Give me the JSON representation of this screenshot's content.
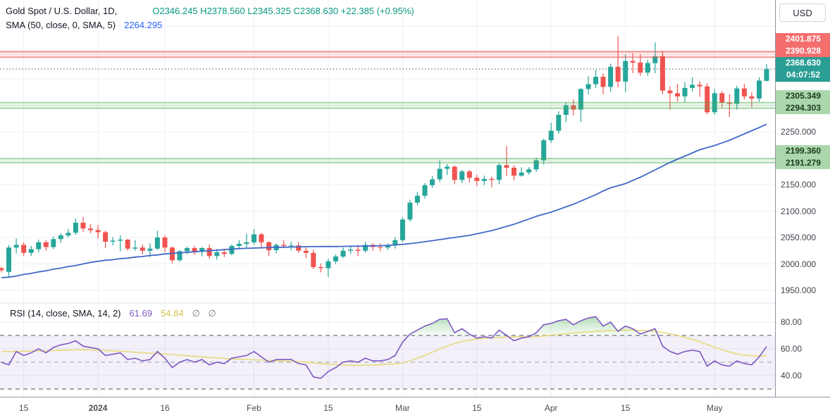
{
  "header": {
    "symbol_title": "Gold Spot / U.S. Dollar, 1D,",
    "ohlc": "O2346.245  H2378.560  L2345.325  C2368.630  +22.385 (+0.95%)",
    "sma_label": "SMA (50, close, 0, SMA, 5)",
    "sma_value": "2264.295"
  },
  "rsi_legend": {
    "label": "RSI (14, close, SMA, 14, 2)",
    "value": "61.69",
    "signal": "54.84",
    "extra": "∅ ∅"
  },
  "price_scale": {
    "currency_button": "USD",
    "ticks": [
      2250,
      2150,
      2100,
      2050,
      2000,
      1950
    ],
    "labels": [
      {
        "price": 2401.875,
        "text": "2401.875",
        "kind": "resistance"
      },
      {
        "price": 2390.928,
        "text": "2390.928",
        "kind": "resistance"
      },
      {
        "price": 2368.63,
        "text": "2368.630",
        "sub": "04:07:52",
        "kind": "last"
      },
      {
        "price": 2305.349,
        "text": "2305.349",
        "kind": "support"
      },
      {
        "price": 2294.303,
        "text": "2294.303",
        "kind": "support"
      },
      {
        "price": 2199.36,
        "text": "2199.360",
        "kind": "support"
      },
      {
        "price": 2191.279,
        "text": "2191.279",
        "kind": "support"
      }
    ],
    "rsi_ticks": [
      80,
      60,
      40
    ]
  },
  "time_axis": {
    "labels": [
      {
        "text": "15",
        "index": 3,
        "strong": false
      },
      {
        "text": "2024",
        "index": 13,
        "strong": true
      },
      {
        "text": "16",
        "index": 22,
        "strong": false
      },
      {
        "text": "Feb",
        "index": 34,
        "strong": false
      },
      {
        "text": "15",
        "index": 44,
        "strong": false
      },
      {
        "text": "Mar",
        "index": 54,
        "strong": false
      },
      {
        "text": "15",
        "index": 64,
        "strong": false
      },
      {
        "text": "Apr",
        "index": 74,
        "strong": false
      },
      {
        "text": "15",
        "index": 84,
        "strong": false
      },
      {
        "text": "May",
        "index": 96,
        "strong": false
      }
    ]
  },
  "colors": {
    "up": "#26a69a",
    "down": "#ef5350",
    "sma": "#4169c9",
    "rsi": "#7e57c2",
    "rsi_signal": "#e5d76e",
    "rsi_band": "rgba(126,87,194,0.09)",
    "overbought_fill": "#4caf50",
    "resistance": "#ef5350",
    "support": "#4caf50",
    "last_price_line": "#5f7680",
    "grid": "#edf0f5",
    "divider": "#dfe2ea"
  },
  "chart_data": {
    "type": "candlestick",
    "title": "Gold Spot / U.S. Dollar, 1D",
    "currency": "USD",
    "last_bar": {
      "open": 2346.245,
      "high": 2378.56,
      "low": 2345.325,
      "close": 2368.63,
      "change": 22.385,
      "change_pct": 0.95
    },
    "sma50_last": 2264.295,
    "rsi_last": 61.69,
    "rsi_signal_last": 54.84,
    "price_ticks": [
      2250,
      2150,
      2100,
      2050,
      2000,
      1950
    ],
    "levels": {
      "resistance_zone": [
        2390.928,
        2401.875
      ],
      "support_zones": [
        [
          2294.303,
          2305.349
        ],
        [
          2191.279,
          2199.36
        ]
      ],
      "last_price": 2368.63
    },
    "candles": [
      [
        1992,
        1995,
        1984,
        1988
      ],
      [
        1985,
        2036,
        1974,
        2031
      ],
      [
        2031,
        2048,
        2020,
        2036
      ],
      [
        2036,
        2041,
        2015,
        2021
      ],
      [
        2021,
        2034,
        2015,
        2028
      ],
      [
        2028,
        2046,
        2022,
        2041
      ],
      [
        2041,
        2045,
        2025,
        2032
      ],
      [
        2032,
        2052,
        2028,
        2047
      ],
      [
        2047,
        2058,
        2040,
        2054
      ],
      [
        2054,
        2066,
        2050,
        2059
      ],
      [
        2059,
        2086,
        2055,
        2078
      ],
      [
        2078,
        2089,
        2061,
        2067
      ],
      [
        2067,
        2076,
        2058,
        2064
      ],
      [
        2064,
        2074,
        2048,
        2060
      ],
      [
        2060,
        2063,
        2030,
        2042
      ],
      [
        2042,
        2051,
        2035,
        2044
      ],
      [
        2044,
        2054,
        2024,
        2046
      ],
      [
        2046,
        2047,
        2025,
        2029
      ],
      [
        2029,
        2045,
        2025,
        2031
      ],
      [
        2031,
        2037,
        2018,
        2025
      ],
      [
        2025,
        2039,
        2013,
        2029
      ],
      [
        2029,
        2063,
        2026,
        2050
      ],
      [
        2050,
        2054,
        2022,
        2031
      ],
      [
        2031,
        2033,
        2001,
        2007
      ],
      [
        2007,
        2026,
        2004,
        2024
      ],
      [
        2024,
        2033,
        2018,
        2030
      ],
      [
        2030,
        2034,
        2017,
        2023
      ],
      [
        2023,
        2032,
        2014,
        2030
      ],
      [
        2030,
        2037,
        2010,
        2015
      ],
      [
        2015,
        2028,
        2008,
        2022
      ],
      [
        2022,
        2029,
        2013,
        2019
      ],
      [
        2019,
        2037,
        2016,
        2034
      ],
      [
        2034,
        2045,
        2028,
        2038
      ],
      [
        2038,
        2057,
        2030,
        2041
      ],
      [
        2041,
        2066,
        2036,
        2056
      ],
      [
        2056,
        2059,
        2029,
        2041
      ],
      [
        2041,
        2043,
        2015,
        2026
      ],
      [
        2026,
        2039,
        2020,
        2036
      ],
      [
        2036,
        2045,
        2030,
        2034
      ],
      [
        2034,
        2042,
        2026,
        2035
      ],
      [
        2035,
        2041,
        2021,
        2025
      ],
      [
        2025,
        2031,
        2011,
        2021
      ],
      [
        2021,
        2027,
        1990,
        1994
      ],
      [
        1994,
        2001,
        1984,
        1992
      ],
      [
        1992,
        2010,
        1975,
        2005
      ],
      [
        2005,
        2018,
        2000,
        2014
      ],
      [
        2014,
        2031,
        2011,
        2025
      ],
      [
        2025,
        2034,
        2019,
        2027
      ],
      [
        2027,
        2036,
        2015,
        2025
      ],
      [
        2025,
        2042,
        2021,
        2036
      ],
      [
        2036,
        2039,
        2025,
        2032
      ],
      [
        2032,
        2039,
        2024,
        2031
      ],
      [
        2031,
        2039,
        2026,
        2035
      ],
      [
        2035,
        2051,
        2029,
        2045
      ],
      [
        2045,
        2089,
        2041,
        2084
      ],
      [
        2084,
        2121,
        2080,
        2116
      ],
      [
        2116,
        2136,
        2111,
        2129
      ],
      [
        2129,
        2153,
        2124,
        2149
      ],
      [
        2149,
        2166,
        2144,
        2160
      ],
      [
        2160,
        2196,
        2155,
        2180
      ],
      [
        2180,
        2189,
        2168,
        2184
      ],
      [
        2184,
        2186,
        2151,
        2159
      ],
      [
        2159,
        2178,
        2153,
        2175
      ],
      [
        2175,
        2178,
        2154,
        2163
      ],
      [
        2163,
        2169,
        2147,
        2157
      ],
      [
        2157,
        2167,
        2149,
        2161
      ],
      [
        2161,
        2165,
        2145,
        2159
      ],
      [
        2159,
        2191,
        2151,
        2187
      ],
      [
        2187,
        2223,
        2166,
        2182
      ],
      [
        2182,
        2187,
        2158,
        2167
      ],
      [
        2167,
        2183,
        2165,
        2173
      ],
      [
        2173,
        2183,
        2169,
        2179
      ],
      [
        2179,
        2201,
        2174,
        2196
      ],
      [
        2196,
        2237,
        2188,
        2234
      ],
      [
        2234,
        2267,
        2229,
        2252
      ],
      [
        2252,
        2289,
        2246,
        2282
      ],
      [
        2282,
        2306,
        2268,
        2300
      ],
      [
        2300,
        2311,
        2281,
        2292
      ],
      [
        2292,
        2333,
        2269,
        2331
      ],
      [
        2331,
        2355,
        2321,
        2340
      ],
      [
        2340,
        2367,
        2333,
        2354
      ],
      [
        2354,
        2361,
        2321,
        2335
      ],
      [
        2335,
        2379,
        2326,
        2373
      ],
      [
        2373,
        2431,
        2334,
        2345
      ],
      [
        2345,
        2396,
        2325,
        2384
      ],
      [
        2384,
        2399,
        2361,
        2381
      ],
      [
        2381,
        2397,
        2356,
        2362
      ],
      [
        2362,
        2386,
        2356,
        2380
      ],
      [
        2380,
        2419,
        2361,
        2393
      ],
      [
        2393,
        2403,
        2321,
        2328
      ],
      [
        2328,
        2336,
        2292,
        2323
      ],
      [
        2323,
        2341,
        2307,
        2317
      ],
      [
        2317,
        2344,
        2306,
        2333
      ],
      [
        2333,
        2353,
        2326,
        2339
      ],
      [
        2339,
        2346,
        2316,
        2336
      ],
      [
        2336,
        2342,
        2283,
        2287
      ],
      [
        2287,
        2331,
        2282,
        2323
      ],
      [
        2323,
        2327,
        2296,
        2305
      ],
      [
        2305,
        2321,
        2278,
        2303
      ],
      [
        2303,
        2337,
        2292,
        2332
      ],
      [
        2332,
        2341,
        2311,
        2317
      ],
      [
        2317,
        2325,
        2296,
        2313
      ],
      [
        2313,
        2353,
        2307,
        2347
      ],
      [
        2346.245,
        2378.56,
        2345.325,
        2368.63
      ]
    ],
    "sma50": [
      1974,
      1975,
      1977,
      1980,
      1982,
      1985,
      1987,
      1990,
      1992,
      1995,
      1997,
      2000,
      2003,
      2005,
      2007,
      2008,
      2010,
      2011,
      2013,
      2014,
      2016,
      2017,
      2019,
      2020,
      2021,
      2022,
      2023,
      2024,
      2025,
      2026,
      2027,
      2028,
      2029,
      2029.5,
      2030,
      2030.5,
      2031,
      2031.3,
      2031.6,
      2032,
      2032.3,
      2032.6,
      2032.8,
      2033,
      2033,
      2033,
      2033.2,
      2033.4,
      2033.6,
      2033.8,
      2034,
      2034.5,
      2035,
      2036,
      2037,
      2038.5,
      2040,
      2042,
      2044,
      2046,
      2048,
      2050,
      2052,
      2054,
      2057,
      2060,
      2063,
      2067,
      2071,
      2075,
      2080,
      2085,
      2090,
      2094,
      2098,
      2103,
      2108,
      2113,
      2119,
      2125,
      2131,
      2138,
      2144,
      2148,
      2152,
      2158,
      2164,
      2171,
      2178,
      2185,
      2192,
      2198,
      2204,
      2210,
      2216,
      2220,
      2224,
      2229,
      2234,
      2240,
      2246,
      2252,
      2258,
      2264.3
    ],
    "indicator_pane": {
      "name": "RSI (14, close, SMA, 14, 2)",
      "levels": [
        70,
        50,
        30
      ],
      "ticks": [
        80,
        60,
        40
      ],
      "rsi": [
        50,
        48,
        58,
        55,
        57,
        60,
        57,
        61,
        63,
        64,
        66,
        62,
        61,
        60,
        55,
        56,
        57,
        52,
        53,
        51,
        52,
        58,
        53,
        46,
        50,
        52,
        50,
        52,
        48,
        50,
        49,
        53,
        54,
        55,
        58,
        54,
        50,
        52,
        52,
        52,
        49,
        48,
        39,
        38,
        43,
        46,
        50,
        51,
        50,
        53,
        51,
        51,
        52,
        55,
        65,
        71,
        74,
        77,
        79,
        82,
        82.5,
        72,
        75,
        71,
        68,
        69,
        68,
        74,
        70,
        66,
        68,
        69,
        72,
        78,
        79,
        81,
        82,
        78,
        81,
        83,
        84,
        77,
        80,
        73,
        77,
        75,
        71,
        73,
        75,
        62,
        58,
        56,
        58,
        59,
        58,
        47,
        51,
        48,
        47,
        51,
        49,
        48,
        54,
        61.69
      ],
      "rsi_sma": [
        58,
        58,
        58,
        58.2,
        58.3,
        58.4,
        58.5,
        58.7,
        58.9,
        59,
        59.2,
        59.3,
        59.2,
        59,
        58.8,
        58.5,
        58.2,
        57.9,
        57.5,
        57.1,
        56.7,
        56.4,
        56.1,
        55.8,
        55.3,
        54.8,
        54.4,
        54,
        53.6,
        53.2,
        52.8,
        52.4,
        52.2,
        52,
        51.8,
        51.6,
        51.3,
        51.1,
        50.9,
        50.6,
        50.3,
        50,
        49.6,
        49.1,
        48.6,
        48.2,
        47.9,
        47.7,
        47.7,
        47.8,
        47.9,
        48.1,
        48.4,
        48.8,
        49.5,
        51,
        53,
        55,
        57.5,
        60,
        62,
        64,
        65.5,
        66.5,
        67.3,
        67.8,
        68.2,
        68.5,
        68.8,
        69,
        69,
        69,
        69.2,
        69.6,
        70.2,
        70.8,
        71.3,
        71.8,
        72.2,
        72.6,
        73,
        73.3,
        73.6,
        73.8,
        74,
        74,
        73.8,
        73.5,
        73,
        72.2,
        71.2,
        70,
        68.6,
        67,
        65.2,
        63.2,
        61.2,
        59.3,
        57.6,
        56.2,
        55.3,
        54.8,
        54.6,
        54.84
      ]
    }
  }
}
